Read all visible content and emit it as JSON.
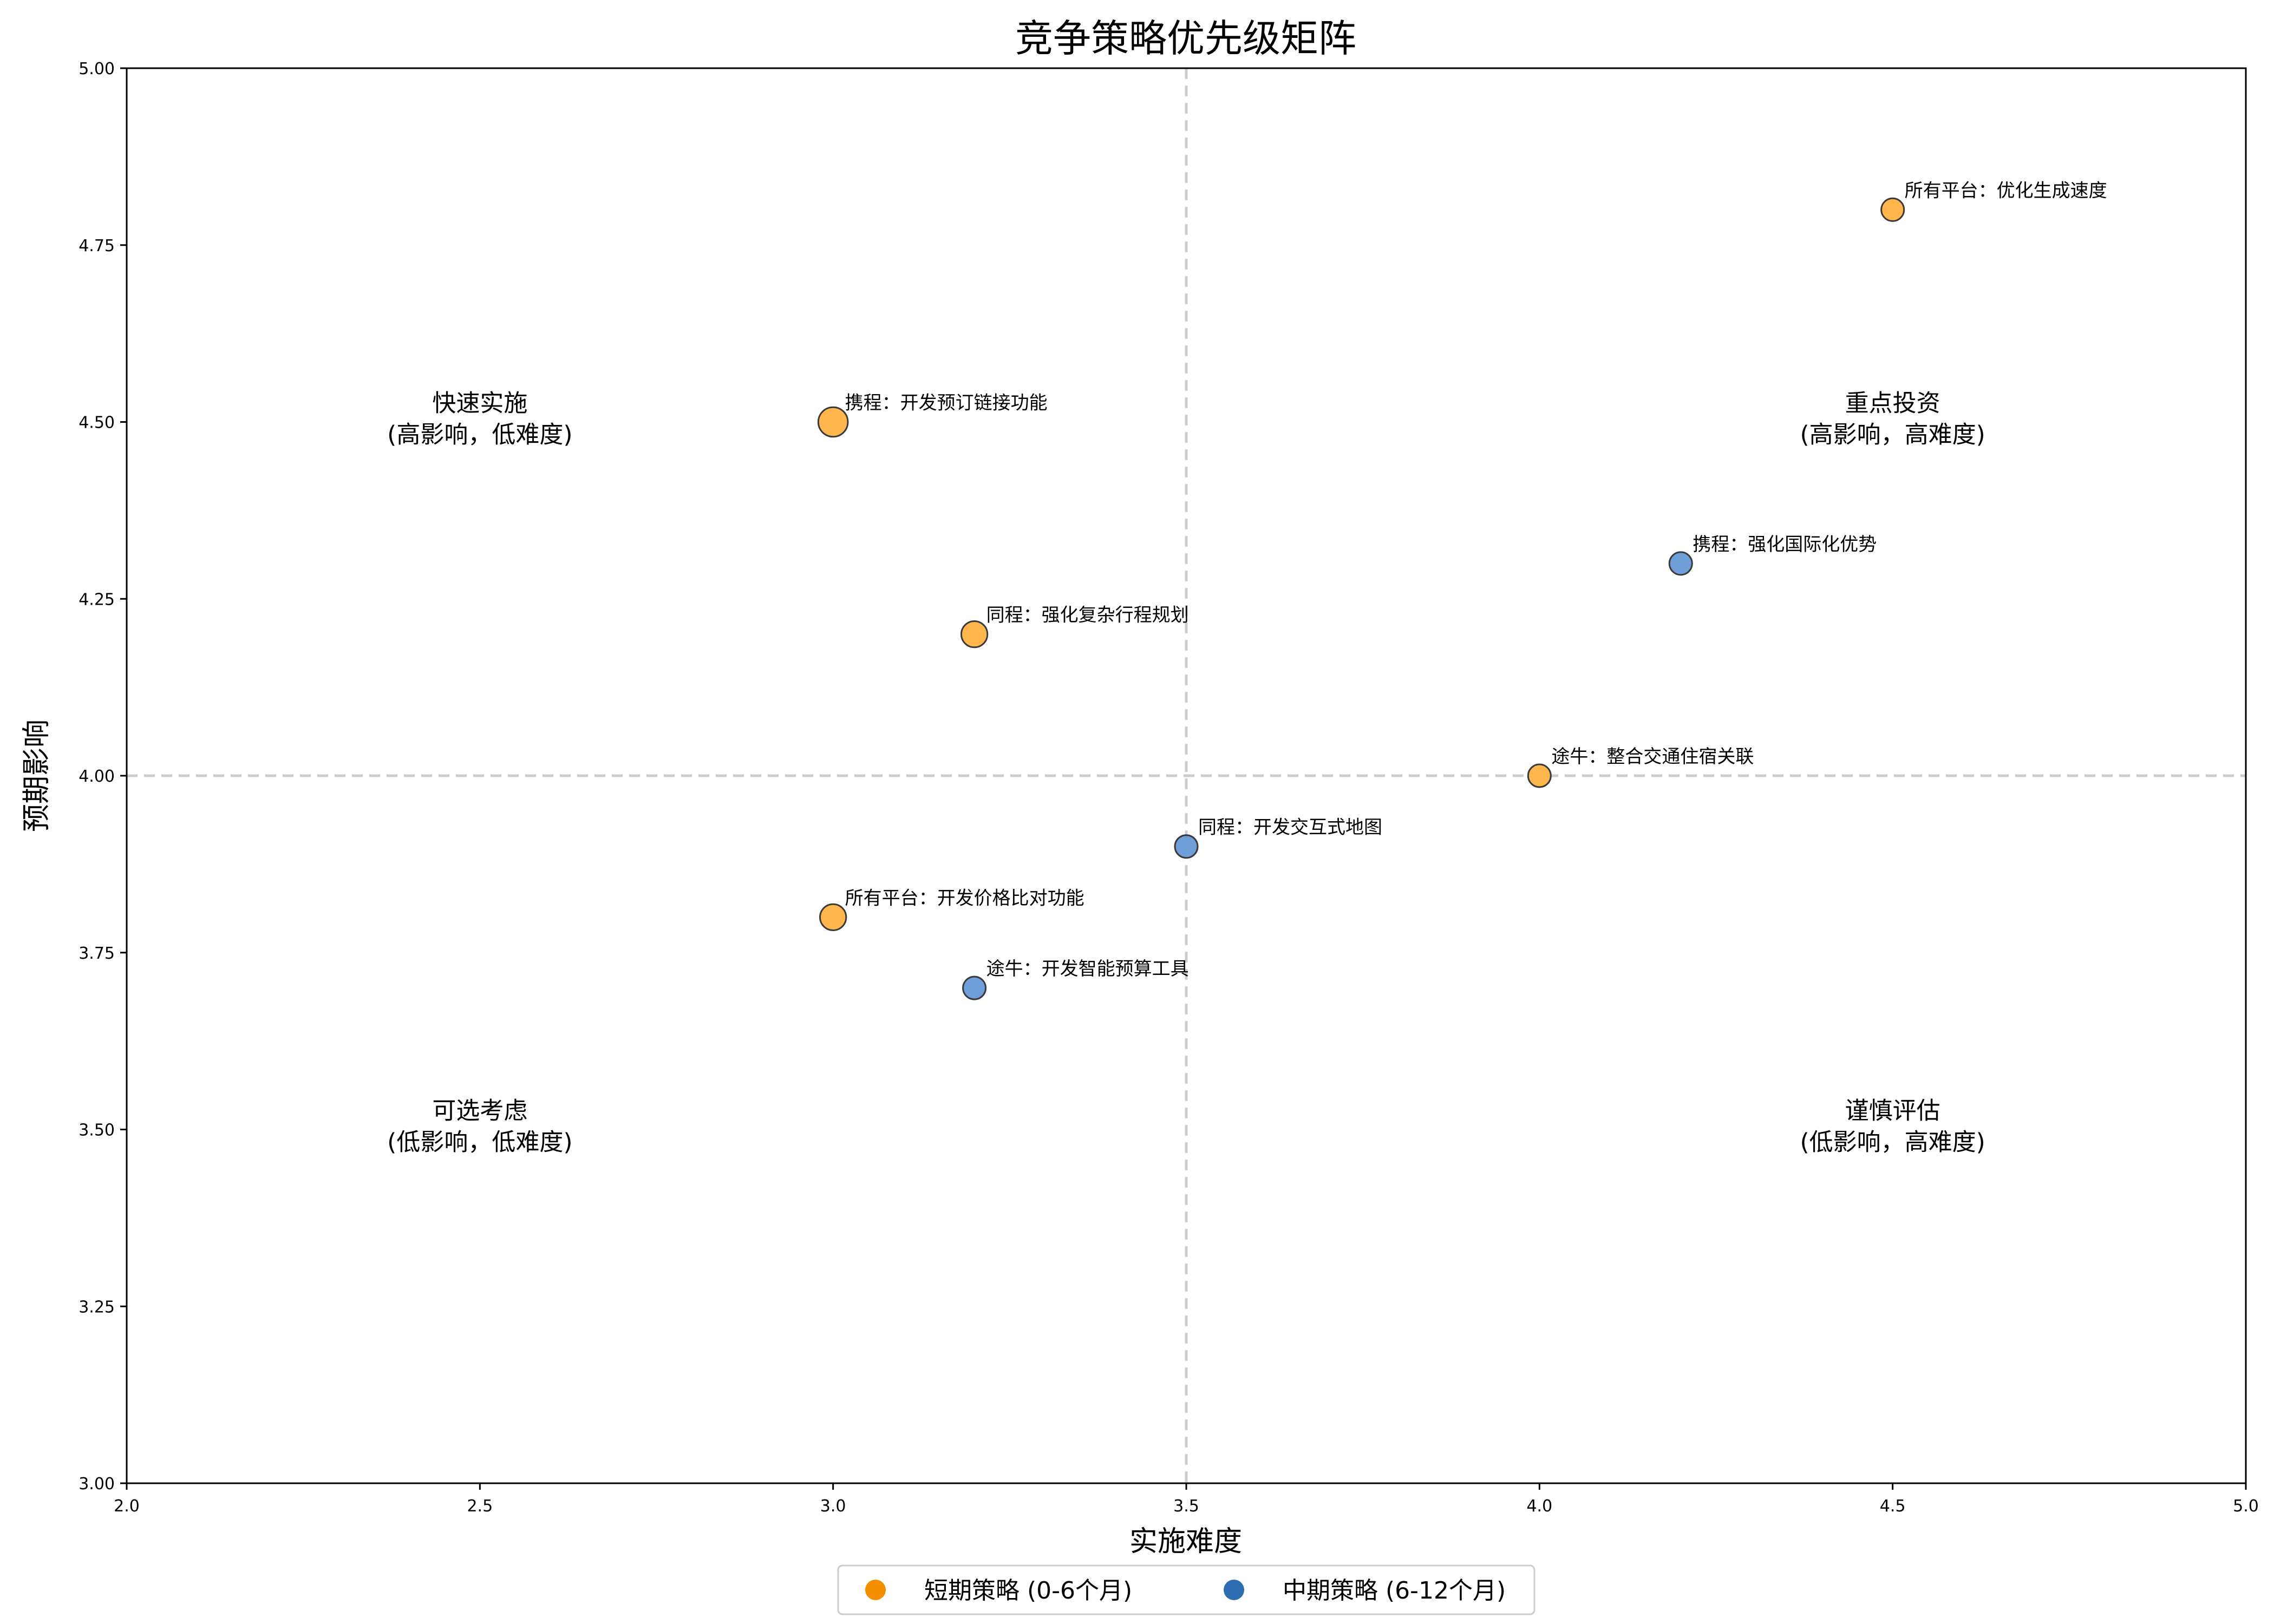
{
  "chart_data": {
    "type": "scatter",
    "title": "竞争策略优先级矩阵",
    "xlabel": "实施难度",
    "ylabel": "预期影响",
    "xlim": [
      2.0,
      5.0
    ],
    "ylim": [
      3.0,
      5.0
    ],
    "xticks": [
      "2.0",
      "2.5",
      "3.0",
      "3.5",
      "4.0",
      "4.5",
      "5.0"
    ],
    "yticks": [
      "3.00",
      "3.25",
      "3.50",
      "3.75",
      "4.00",
      "4.25",
      "4.50",
      "4.75",
      "5.00"
    ],
    "divider_x": 3.5,
    "divider_y": 4.0,
    "grid": false,
    "legend_position": "bottom-center",
    "series": [
      {
        "name": "短期策略 (0-6个月)",
        "color": "#FFB74D",
        "legend_color": "#F28E00",
        "points": [
          {
            "x": 4.5,
            "y": 4.8,
            "label": "所有平台：优化生成速度",
            "size": 1.0
          },
          {
            "x": 3.0,
            "y": 4.5,
            "label": "携程：开发预订链接功能",
            "size": 1.3
          },
          {
            "x": 3.2,
            "y": 4.2,
            "label": "同程：强化复杂行程规划",
            "size": 1.15
          },
          {
            "x": 4.0,
            "y": 4.0,
            "label": "途牛：整合交通住宿关联",
            "size": 1.0
          },
          {
            "x": 3.0,
            "y": 3.8,
            "label": "所有平台：开发价格比对功能",
            "size": 1.15
          }
        ]
      },
      {
        "name": "中期策略 (6-12个月)",
        "color": "#6F9FD8",
        "legend_color": "#2E6DB4",
        "points": [
          {
            "x": 4.2,
            "y": 4.3,
            "label": "携程：强化国际化优势",
            "size": 1.0
          },
          {
            "x": 3.5,
            "y": 3.9,
            "label": "同程：开发交互式地图",
            "size": 1.0
          },
          {
            "x": 3.2,
            "y": 3.7,
            "label": "途牛：开发智能预算工具",
            "size": 1.0
          }
        ]
      }
    ],
    "quadrant_labels": [
      {
        "x": 2.5,
        "y": 4.5,
        "title": "快速实施",
        "subtitle": "(高影响，低难度)"
      },
      {
        "x": 4.5,
        "y": 4.5,
        "title": "重点投资",
        "subtitle": "(高影响，高难度)"
      },
      {
        "x": 2.5,
        "y": 3.5,
        "title": "可选考虑",
        "subtitle": "(低影响，低难度)"
      },
      {
        "x": 4.5,
        "y": 3.5,
        "title": "谨慎评估",
        "subtitle": "(低影响，高难度)"
      }
    ]
  }
}
